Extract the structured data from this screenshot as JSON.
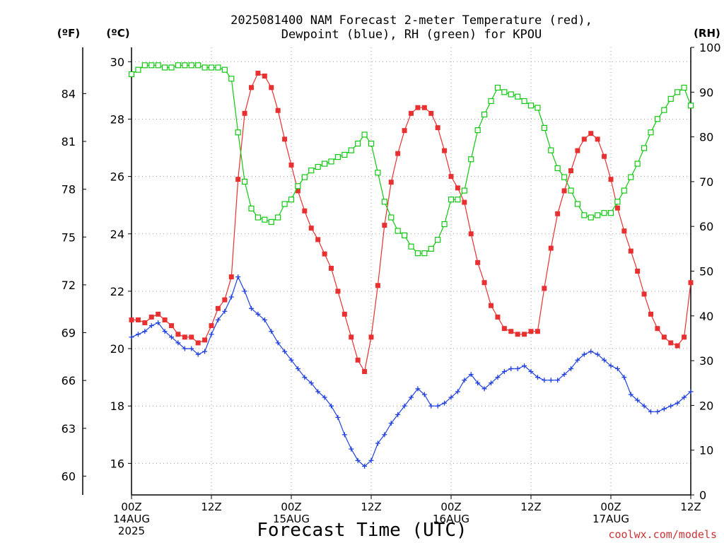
{
  "title_line1": "2025081400 NAM Forecast 2-meter Temperature (red),",
  "title_line2": "Dewpoint (blue), RH (green) for KPOU",
  "units": {
    "fahrenheit": "(ºF)",
    "celsius": "(ºC)",
    "rh": "(RH)"
  },
  "credit": "coolwx.com/models",
  "colors": {
    "temperature": "#e83030",
    "dewpoint": "#2040e0",
    "rh": "#10c810",
    "grid": "#9a9a9a"
  },
  "chart_data": {
    "type": "line",
    "xlabel": "Forecast Time (UTC)",
    "x_hours_range": [
      0,
      84
    ],
    "x_ticks": [
      {
        "h": 0,
        "lines": [
          "00Z",
          "14AUG",
          "2025"
        ]
      },
      {
        "h": 12,
        "lines": [
          "12Z"
        ]
      },
      {
        "h": 24,
        "lines": [
          "00Z",
          "15AUG"
        ]
      },
      {
        "h": 36,
        "lines": [
          "12Z"
        ]
      },
      {
        "h": 48,
        "lines": [
          "00Z",
          "16AUG"
        ]
      },
      {
        "h": 60,
        "lines": [
          "12Z"
        ]
      },
      {
        "h": 72,
        "lines": [
          "00Z",
          "17AUG"
        ]
      },
      {
        "h": 84,
        "lines": [
          "12Z"
        ]
      }
    ],
    "celsius_axis": {
      "ticks": [
        16,
        18,
        20,
        22,
        24,
        26,
        28,
        30
      ]
    },
    "fahrenheit_axis": {
      "ticks": [
        60,
        63,
        66,
        69,
        72,
        75,
        78,
        81,
        84
      ]
    },
    "rh_axis": {
      "ylim": [
        0,
        100
      ],
      "ticks": [
        0,
        10,
        20,
        30,
        40,
        50,
        60,
        70,
        80,
        90,
        100
      ]
    },
    "celsius_ylim": [
      14.9,
      30.5
    ],
    "series": [
      {
        "name": "Temperature",
        "axis": "celsius",
        "marker": "filled-square",
        "x": [
          0,
          1,
          2,
          3,
          4,
          5,
          6,
          7,
          8,
          9,
          10,
          11,
          12,
          13,
          14,
          15,
          16,
          17,
          18,
          19,
          20,
          21,
          22,
          23,
          24,
          25,
          26,
          27,
          28,
          29,
          30,
          31,
          32,
          33,
          34,
          35,
          36,
          37,
          38,
          39,
          40,
          41,
          42,
          43,
          44,
          45,
          46,
          47,
          48,
          49,
          50,
          51,
          52,
          53,
          54,
          55,
          56,
          57,
          58,
          59,
          60,
          61,
          62,
          63,
          64,
          65,
          66,
          67,
          68,
          69,
          70,
          71,
          72,
          73,
          74,
          75,
          76,
          77,
          78,
          79,
          80,
          81,
          82,
          83,
          84
        ],
        "values": [
          21.0,
          21.0,
          20.9,
          21.1,
          21.2,
          21.0,
          20.8,
          20.5,
          20.4,
          20.4,
          20.2,
          20.3,
          20.8,
          21.4,
          21.7,
          22.5,
          25.9,
          28.2,
          29.1,
          29.6,
          29.5,
          29.1,
          28.3,
          27.3,
          26.4,
          25.5,
          24.8,
          24.2,
          23.8,
          23.3,
          22.8,
          22.0,
          21.2,
          20.4,
          19.6,
          19.2,
          20.4,
          22.2,
          24.3,
          25.8,
          26.8,
          27.6,
          28.2,
          28.4,
          28.4,
          28.2,
          27.7,
          26.9,
          26.0,
          25.6,
          25.1,
          24.0,
          23.0,
          22.3,
          21.5,
          21.1,
          20.7,
          20.6,
          20.5,
          20.5,
          20.6,
          20.6,
          22.1,
          23.5,
          24.7,
          25.5,
          26.2,
          26.9,
          27.3,
          27.5,
          27.3,
          26.7,
          25.9,
          24.9,
          24.1,
          23.4,
          22.7,
          21.9,
          21.2,
          20.7,
          20.4,
          20.2,
          20.1,
          20.4,
          22.3
        ]
      },
      {
        "name": "Dewpoint",
        "axis": "celsius",
        "marker": "plus",
        "x": [
          0,
          1,
          2,
          3,
          4,
          5,
          6,
          7,
          8,
          9,
          10,
          11,
          12,
          13,
          14,
          15,
          16,
          17,
          18,
          19,
          20,
          21,
          22,
          23,
          24,
          25,
          26,
          27,
          28,
          29,
          30,
          31,
          32,
          33,
          34,
          35,
          36,
          37,
          38,
          39,
          40,
          41,
          42,
          43,
          44,
          45,
          46,
          47,
          48,
          49,
          50,
          51,
          52,
          53,
          54,
          55,
          56,
          57,
          58,
          59,
          60,
          61,
          62,
          63,
          64,
          65,
          66,
          67,
          68,
          69,
          70,
          71,
          72,
          73,
          74,
          75,
          76,
          77,
          78,
          79,
          80,
          81,
          82,
          83,
          84
        ],
        "values": [
          20.4,
          20.5,
          20.6,
          20.8,
          20.9,
          20.6,
          20.4,
          20.2,
          20.0,
          20.0,
          19.8,
          19.9,
          20.5,
          21.0,
          21.3,
          21.8,
          22.5,
          22.0,
          21.4,
          21.2,
          21.0,
          20.6,
          20.2,
          19.9,
          19.6,
          19.3,
          19.0,
          18.8,
          18.5,
          18.3,
          18.0,
          17.6,
          17.0,
          16.5,
          16.1,
          15.9,
          16.1,
          16.7,
          17.0,
          17.4,
          17.7,
          18.0,
          18.3,
          18.6,
          18.4,
          18.0,
          18.0,
          18.1,
          18.3,
          18.5,
          18.9,
          19.1,
          18.8,
          18.6,
          18.8,
          19.0,
          19.2,
          19.3,
          19.3,
          19.4,
          19.2,
          19.0,
          18.9,
          18.9,
          18.9,
          19.1,
          19.3,
          19.6,
          19.8,
          19.9,
          19.8,
          19.6,
          19.4,
          19.3,
          19.0,
          18.4,
          18.2,
          18.0,
          17.8,
          17.8,
          17.9,
          18.0,
          18.1,
          18.3,
          18.5
        ]
      },
      {
        "name": "RH",
        "axis": "rh",
        "marker": "open-square",
        "x": [
          0,
          1,
          2,
          3,
          4,
          5,
          6,
          7,
          8,
          9,
          10,
          11,
          12,
          13,
          14,
          15,
          16,
          17,
          18,
          19,
          20,
          21,
          22,
          23,
          24,
          25,
          26,
          27,
          28,
          29,
          30,
          31,
          32,
          33,
          34,
          35,
          36,
          37,
          38,
          39,
          40,
          41,
          42,
          43,
          44,
          45,
          46,
          47,
          48,
          49,
          50,
          51,
          52,
          53,
          54,
          55,
          56,
          57,
          58,
          59,
          60,
          61,
          62,
          63,
          64,
          65,
          66,
          67,
          68,
          69,
          70,
          71,
          72,
          73,
          74,
          75,
          76,
          77,
          78,
          79,
          80,
          81,
          82,
          83,
          84
        ],
        "values": [
          94,
          95,
          96,
          96,
          96,
          95.5,
          95.5,
          96,
          96,
          96,
          96,
          95.5,
          95.5,
          95.5,
          95,
          93,
          81,
          70,
          64,
          62,
          61.5,
          61,
          62,
          65,
          66,
          69,
          71,
          72.5,
          73.3,
          74,
          74.5,
          75.5,
          76,
          77,
          78.5,
          80.5,
          78.5,
          72,
          65.5,
          62,
          59,
          58,
          55.5,
          54,
          54,
          55,
          57,
          60.5,
          66,
          66,
          68,
          75,
          81.5,
          85,
          88,
          91,
          90,
          89.5,
          89,
          88,
          87,
          86.5,
          82,
          77,
          73,
          71,
          68,
          65,
          62.5,
          62,
          62.5,
          63,
          63,
          65.5,
          68,
          71,
          74,
          77.5,
          81,
          84,
          86,
          88.5,
          90,
          91,
          87
        ]
      }
    ]
  }
}
